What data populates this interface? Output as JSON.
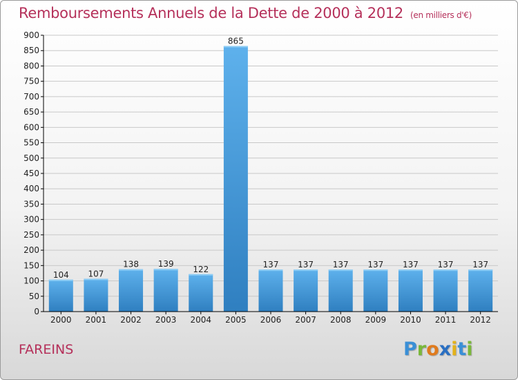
{
  "title": "Remboursements Annuels de la Dette de 2000 à 2012",
  "subtitle": "(en milliers d'€)",
  "commune": "FAREINS",
  "logo": {
    "text": "Proxiti",
    "letters": [
      {
        "ch": "P",
        "color": "#3a8fd6"
      },
      {
        "ch": "r",
        "color": "#7ab83a"
      },
      {
        "ch": "o",
        "color": "#e07b1e"
      },
      {
        "ch": "x",
        "color": "#2a6fc2"
      },
      {
        "ch": "i",
        "color": "#e3b21a"
      },
      {
        "ch": "t",
        "color": "#3a8fd6"
      },
      {
        "ch": "i",
        "color": "#7ab83a"
      }
    ]
  },
  "colors": {
    "title": "#b5305a",
    "bar_top": "#5eb1ec",
    "bar_bottom": "#2f7fc0",
    "axis": "#000000",
    "grid": "#c8c8c8"
  },
  "chart_data": {
    "type": "bar",
    "title": "Remboursements Annuels de la Dette de 2000 à 2012",
    "subtitle": "(en milliers d'€)",
    "xlabel": "",
    "ylabel": "",
    "categories": [
      "2000",
      "2001",
      "2002",
      "2003",
      "2004",
      "2005",
      "2006",
      "2007",
      "2008",
      "2009",
      "2010",
      "2011",
      "2012"
    ],
    "values": [
      104,
      107,
      138,
      139,
      122,
      865,
      137,
      137,
      137,
      137,
      137,
      137,
      137
    ],
    "ylim": [
      0,
      900
    ],
    "yticks": [
      0,
      50,
      100,
      150,
      200,
      250,
      300,
      350,
      400,
      450,
      500,
      550,
      600,
      650,
      700,
      750,
      800,
      850,
      900
    ],
    "grid": true,
    "data_labels": true
  }
}
